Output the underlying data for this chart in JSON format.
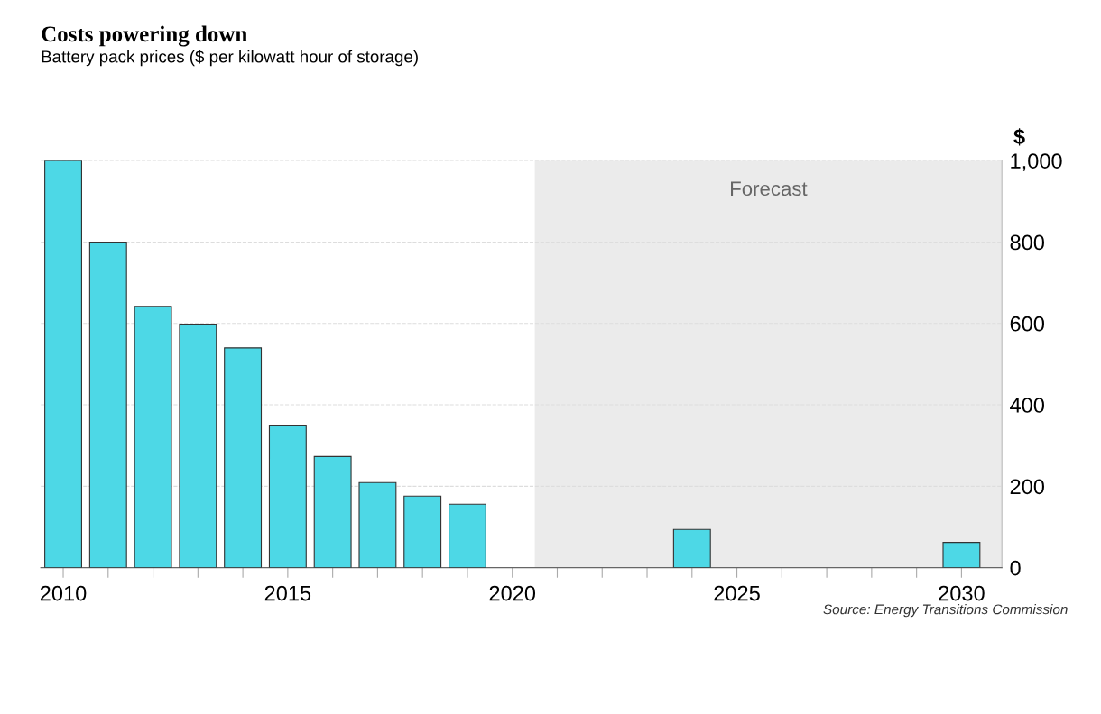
{
  "chart_data": {
    "type": "bar",
    "title": "Costs powering down",
    "subtitle": "Battery pack prices ($ per kilowatt hour of storage)",
    "ylabel": "$",
    "x": [
      2010,
      2011,
      2012,
      2013,
      2014,
      2015,
      2016,
      2017,
      2018,
      2019,
      2024,
      2030
    ],
    "values": [
      1000,
      800,
      642,
      598,
      540,
      350,
      273,
      209,
      176,
      156,
      94,
      62
    ],
    "color": "#4dd8e6",
    "xlim": [
      2009.5,
      2030.9
    ],
    "ylim": [
      0,
      1000
    ],
    "xticks": [
      2010,
      {
        "value": 2011,
        "label": null
      },
      {
        "value": 2012,
        "label": null
      },
      {
        "value": 2013,
        "label": null
      },
      {
        "value": 2014,
        "label": null
      },
      2015,
      {
        "value": 2016,
        "label": null
      },
      {
        "value": 2017,
        "label": null
      },
      {
        "value": 2018,
        "label": null
      },
      {
        "value": 2019,
        "label": null
      },
      2020,
      {
        "value": 2021,
        "label": null
      },
      {
        "value": 2022,
        "label": null
      },
      {
        "value": 2023,
        "label": null
      },
      {
        "value": 2024,
        "label": null
      },
      2025,
      {
        "value": 2026,
        "label": null
      },
      {
        "value": 2027,
        "label": null
      },
      {
        "value": 2028,
        "label": null
      },
      {
        "value": 2029,
        "label": null
      },
      2030
    ],
    "yticks": [
      0,
      {
        "value": 200,
        "label": "200"
      },
      400,
      600,
      800,
      {
        "value": 1000,
        "label": "1,000"
      }
    ],
    "grid": "y",
    "bands": [
      {
        "axis": "x",
        "from": 2020.5,
        "to": 2030.9,
        "label": "Forecast",
        "color": "#ebebeb"
      }
    ],
    "annotations": [
      "Source: Energy Transitions Commission"
    ]
  }
}
